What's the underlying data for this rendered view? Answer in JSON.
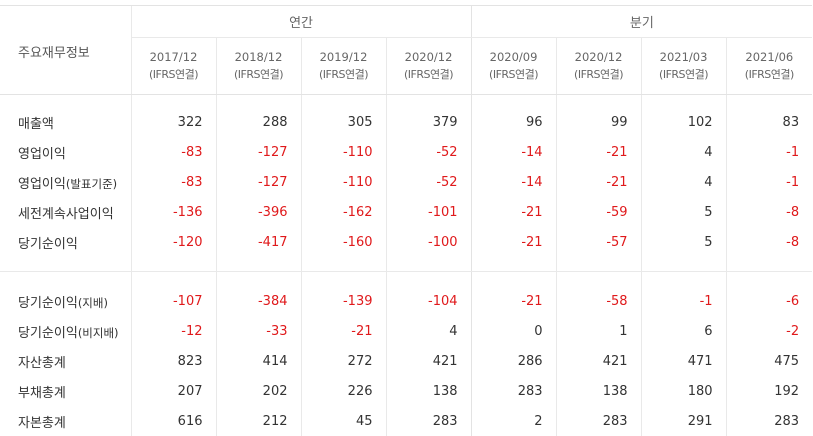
{
  "table": {
    "corner_label": "주요재무정보",
    "groups": {
      "annual": "연간",
      "quarter": "분기"
    },
    "periods": [
      {
        "date": "2017/12",
        "basis": "(IFRS연결)"
      },
      {
        "date": "2018/12",
        "basis": "(IFRS연결)"
      },
      {
        "date": "2019/12",
        "basis": "(IFRS연결)"
      },
      {
        "date": "2020/12",
        "basis": "(IFRS연결)"
      },
      {
        "date": "2020/09",
        "basis": "(IFRS연결)"
      },
      {
        "date": "2020/12",
        "basis": "(IFRS연결)"
      },
      {
        "date": "2021/03",
        "basis": "(IFRS연결)"
      },
      {
        "date": "2021/06",
        "basis": "(IFRS연결)"
      }
    ],
    "section1": [
      {
        "label": "매출액",
        "sub": "",
        "values": [
          "322",
          "288",
          "305",
          "379",
          "96",
          "99",
          "102",
          "83"
        ]
      },
      {
        "label": "영업이익",
        "sub": "",
        "values": [
          "-83",
          "-127",
          "-110",
          "-52",
          "-14",
          "-21",
          "4",
          "-1"
        ]
      },
      {
        "label": "영업이익",
        "sub": "(발표기준)",
        "values": [
          "-83",
          "-127",
          "-110",
          "-52",
          "-14",
          "-21",
          "4",
          "-1"
        ]
      },
      {
        "label": "세전계속사업이익",
        "sub": "",
        "values": [
          "-136",
          "-396",
          "-162",
          "-101",
          "-21",
          "-59",
          "5",
          "-8"
        ]
      },
      {
        "label": "당기순이익",
        "sub": "",
        "values": [
          "-120",
          "-417",
          "-160",
          "-100",
          "-21",
          "-57",
          "5",
          "-8"
        ]
      }
    ],
    "section2": [
      {
        "label": "당기순이익",
        "sub": "(지배)",
        "values": [
          "-107",
          "-384",
          "-139",
          "-104",
          "-21",
          "-58",
          "-1",
          "-6"
        ]
      },
      {
        "label": "당기순이익",
        "sub": "(비지배)",
        "values": [
          "-12",
          "-33",
          "-21",
          "4",
          "0",
          "1",
          "6",
          "-2"
        ]
      },
      {
        "label": "자산총계",
        "sub": "",
        "values": [
          "823",
          "414",
          "272",
          "421",
          "286",
          "421",
          "471",
          "475"
        ]
      },
      {
        "label": "부채총계",
        "sub": "",
        "values": [
          "207",
          "202",
          "226",
          "138",
          "283",
          "138",
          "180",
          "192"
        ]
      },
      {
        "label": "자본총계",
        "sub": "",
        "values": [
          "616",
          "212",
          "45",
          "283",
          "2",
          "283",
          "291",
          "283"
        ]
      }
    ],
    "colors": {
      "negative": "#e0191b",
      "text": "#333333",
      "border": "#e3e3e3"
    }
  }
}
